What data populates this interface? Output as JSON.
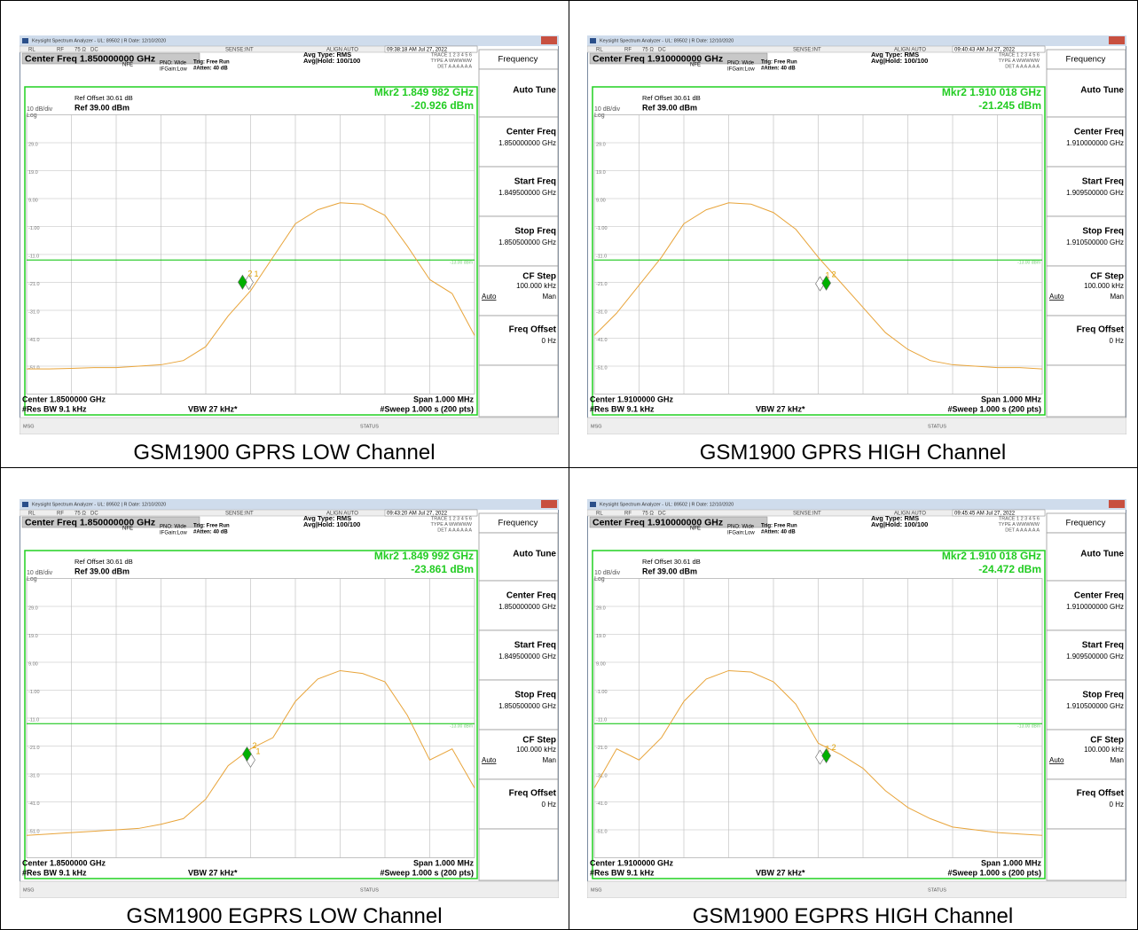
{
  "common": {
    "window_title": "Keysight Spectrum Analyzer - UL: 89502 | R Date: 12/10/2020",
    "status": [
      "RL",
      "RF",
      "75 Ω",
      "DC",
      "SENSE:INT",
      "ALIGN AUTO"
    ],
    "settings": [
      "NFE",
      "PNO: Wide",
      "IFGain:Low",
      "Trig: Free Run",
      "#Atten: 40 dB",
      "Avg Type: RMS",
      "Avg|Hold: 100/100"
    ],
    "trace_info": [
      "TRACE 1 2 3 4 5 6",
      "TYPE A WWWWW",
      "DET A A A A A A"
    ],
    "ref_offset": "Ref Offset 30.61 dB",
    "scale": "10 dB/div",
    "scale_type": "Log",
    "ref_level": "Ref 39.00 dBm",
    "rbw": "#Res BW 9.1 kHz",
    "vbw": "VBW 27 kHz*",
    "span": "Span 1.000 MHz",
    "sweep": "#Sweep  1.000 s (200 pts)",
    "msg": "MSG",
    "status_label": "STATUS",
    "softkeys": [
      {
        "label": "Frequency"
      },
      {
        "label": "Auto Tune"
      },
      {
        "label": "Center Freq"
      },
      {
        "label": "Start Freq"
      },
      {
        "label": "Stop Freq"
      },
      {
        "label": "CF Step",
        "value": "100.000 kHz",
        "options": [
          "Auto",
          "Man"
        ]
      },
      {
        "label": "Freq Offset",
        "value": "0 Hz"
      }
    ],
    "ylim": [
      -61,
      39
    ],
    "yticks": [
      {
        "value": 29,
        "label": "29.0"
      },
      {
        "value": 19,
        "label": "19.0"
      },
      {
        "value": 9,
        "label": "9.00"
      },
      {
        "value": -1,
        "label": "-1.00"
      },
      {
        "value": -11,
        "label": "-11.0"
      },
      {
        "value": -21,
        "label": "-21.0"
      },
      {
        "value": -31,
        "label": "-31.0"
      },
      {
        "value": -41,
        "label": "-41.0"
      },
      {
        "value": -51,
        "label": "-51.0"
      }
    ],
    "limit_line": {
      "value": -13,
      "label": "-13.00 dBm",
      "color": "#00c000"
    },
    "grid": true,
    "trace_color": "#e8a43a"
  },
  "panels": [
    {
      "time": "09:38:18 AM Jul 27, 2022",
      "center_freq_title": "Center Freq 1.850000000 GHz",
      "marker_freq": "Mkr2 1.849 982 GHz",
      "marker_level": "-20.926 dBm",
      "center": "Center 1.8500000 GHz",
      "freq_values": [
        "1.850000000 GHz",
        "1.849500000 GHz",
        "1.850500000 GHz"
      ],
      "caption": "GSM1900 GPRS LOW Channel",
      "chart": {
        "type": "line",
        "xlim": [
          1.8495,
          1.8505
        ],
        "x": [
          1.8495,
          1.84955,
          1.8496,
          1.84965,
          1.8497,
          1.84975,
          1.8498,
          1.84985,
          1.8499,
          1.84995,
          1.85,
          1.85005,
          1.8501,
          1.85015,
          1.8502,
          1.85025,
          1.8503,
          1.85035,
          1.8504,
          1.85045,
          1.8505
        ],
        "values": [
          -52,
          -52,
          -51.8,
          -51.5,
          -51.5,
          -51,
          -50.5,
          -49,
          -44,
          -33,
          -24,
          -12,
          0,
          5,
          7.5,
          7,
          3,
          -8,
          -20,
          -25,
          -40
        ],
        "markers": [
          {
            "label": "1",
            "x": 1.849996,
            "y": -21,
            "color": "#ffffff"
          },
          {
            "label": "2",
            "x": 1.849982,
            "y": -20.926,
            "color": "#00b000"
          }
        ]
      }
    },
    {
      "time": "09:40:43 AM Jul 27, 2022",
      "center_freq_title": "Center Freq 1.910000000 GHz",
      "marker_freq": "Mkr2 1.910 018 GHz",
      "marker_level": "-21.245 dBm",
      "center": "Center 1.9100000 GHz",
      "freq_values": [
        "1.910000000 GHz",
        "1.909500000 GHz",
        "1.910500000 GHz"
      ],
      "caption": "GSM1900 GPRS HIGH Channel",
      "chart": {
        "type": "line",
        "xlim": [
          1.9095,
          1.9105
        ],
        "x": [
          1.9095,
          1.90955,
          1.9096,
          1.90965,
          1.9097,
          1.90975,
          1.9098,
          1.90985,
          1.9099,
          1.90995,
          1.91,
          1.91005,
          1.9101,
          1.91015,
          1.9102,
          1.91025,
          1.9103,
          1.91035,
          1.9104,
          1.91045,
          1.9105
        ],
        "values": [
          -40,
          -32,
          -22,
          -12,
          0,
          5,
          7.5,
          7,
          4,
          -2,
          -12,
          -21,
          -30,
          -39,
          -45,
          -49,
          -50.5,
          -51,
          -51.5,
          -51.5,
          -52
        ],
        "markers": [
          {
            "label": "1",
            "x": 1.910004,
            "y": -21.5,
            "color": "#ffffff"
          },
          {
            "label": "2",
            "x": 1.910018,
            "y": -21.245,
            "color": "#00b000"
          }
        ]
      }
    },
    {
      "time": "09:43:20 AM Jul 27, 2022",
      "center_freq_title": "Center Freq 1.850000000 GHz",
      "marker_freq": "Mkr2 1.849 992 GHz",
      "marker_level": "-23.861 dBm",
      "center": "Center 1.8500000 GHz",
      "freq_values": [
        "1.850000000 GHz",
        "1.849500000 GHz",
        "1.850500000 GHz"
      ],
      "caption": "GSM1900 EGPRS LOW Channel",
      "chart": {
        "type": "line",
        "xlim": [
          1.8495,
          1.8505
        ],
        "x": [
          1.8495,
          1.84955,
          1.8496,
          1.84965,
          1.8497,
          1.84975,
          1.8498,
          1.84985,
          1.8499,
          1.84995,
          1.85,
          1.85005,
          1.8501,
          1.85015,
          1.8502,
          1.85025,
          1.8503,
          1.85035,
          1.8504,
          1.85045,
          1.8505
        ],
        "values": [
          -53,
          -52.5,
          -52,
          -51.5,
          -51,
          -50.5,
          -49,
          -47,
          -40,
          -28,
          -22,
          -18,
          -5,
          3,
          6,
          5,
          2,
          -10,
          -26,
          -22,
          -36
        ],
        "markers": [
          {
            "label": "1",
            "x": 1.85,
            "y": -26,
            "color": "#ffffff"
          },
          {
            "label": "2",
            "x": 1.849992,
            "y": -23.861,
            "color": "#00b000"
          }
        ]
      }
    },
    {
      "time": "09:45:45 AM Jul 27, 2022",
      "center_freq_title": "Center Freq 1.910000000 GHz",
      "marker_freq": "Mkr2 1.910 018 GHz",
      "marker_level": "-24.472 dBm",
      "center": "Center 1.9100000 GHz",
      "freq_values": [
        "1.910000000 GHz",
        "1.909500000 GHz",
        "1.910500000 GHz"
      ],
      "caption": "GSM1900 EGPRS HIGH Channel",
      "chart": {
        "type": "line",
        "xlim": [
          1.9095,
          1.9105
        ],
        "x": [
          1.9095,
          1.90955,
          1.9096,
          1.90965,
          1.9097,
          1.90975,
          1.9098,
          1.90985,
          1.9099,
          1.90995,
          1.91,
          1.91005,
          1.9101,
          1.91015,
          1.9102,
          1.91025,
          1.9103,
          1.91035,
          1.9104,
          1.91045,
          1.9105
        ],
        "values": [
          -36,
          -22,
          -26,
          -18,
          -5,
          3,
          6,
          5.5,
          2,
          -6,
          -20,
          -24,
          -29,
          -37,
          -43,
          -47,
          -50,
          -51,
          -52,
          -52.5,
          -53
        ],
        "markers": [
          {
            "label": "1",
            "x": 1.910004,
            "y": -25,
            "color": "#ffffff"
          },
          {
            "label": "2",
            "x": 1.910018,
            "y": -24.472,
            "color": "#00b000"
          }
        ]
      }
    }
  ]
}
